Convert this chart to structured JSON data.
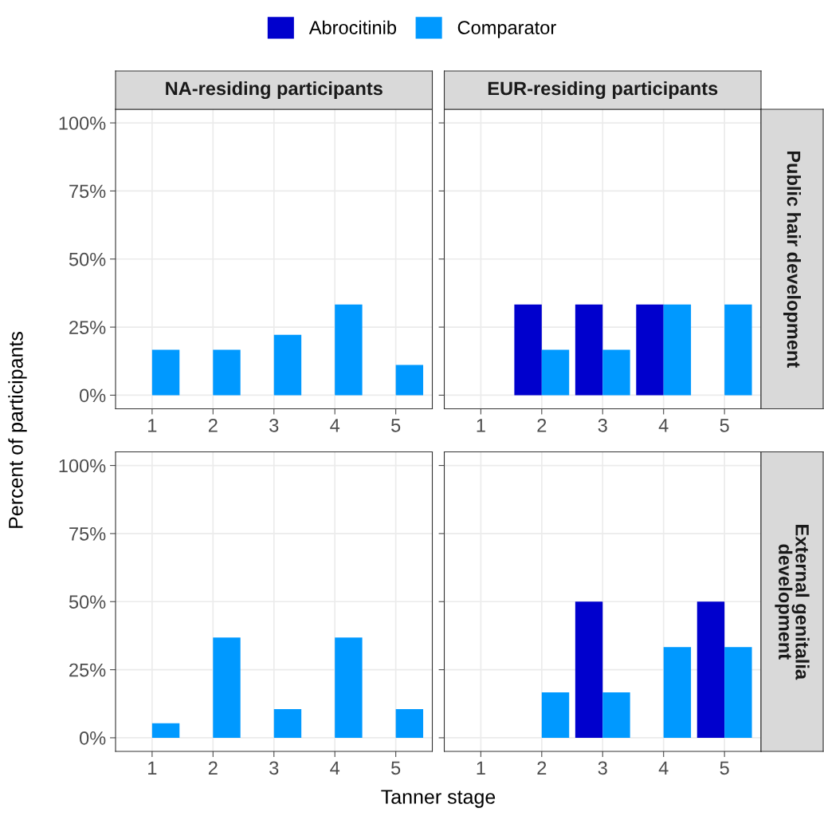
{
  "chart_data": [
    {
      "type": "bar",
      "title": "NA-residing participants",
      "categories": [
        "1",
        "2",
        "3",
        "4",
        "5"
      ],
      "ylabel": "Percent of participants",
      "ylim": [
        -5,
        105
      ],
      "yticks": [
        {
          "value": 0,
          "label": "0%"
        },
        {
          "value": 25,
          "label": "25%"
        },
        {
          "value": 50,
          "label": "50%"
        },
        {
          "value": 75,
          "label": "75%"
        },
        {
          "value": 100,
          "label": "100%"
        }
      ],
      "grid": true,
      "legend": "top",
      "series": [
        {
          "name": "Abrocitinib",
          "color": "#0000cd",
          "values": [
            null,
            null,
            null,
            null,
            null
          ]
        },
        {
          "name": "Comparator",
          "color": "#0099ff",
          "values": [
            16.7,
            16.7,
            22.2,
            33.3,
            11.1
          ]
        }
      ]
    },
    {
      "type": "bar",
      "title": "EUR-residing participants",
      "y2label": "Public hair development",
      "categories": [
        "1",
        "2",
        "3",
        "4",
        "5"
      ],
      "ylim": [
        -5,
        105
      ],
      "yticks": [
        0,
        25,
        50,
        75,
        100
      ],
      "grid": true,
      "tick_labels": "x",
      "series": [
        {
          "color": "#0000cd",
          "values": [
            null,
            33.3,
            33.3,
            33.3,
            null
          ]
        },
        {
          "color": "#0099ff",
          "values": [
            null,
            16.7,
            16.7,
            33.3,
            33.3
          ]
        }
      ]
    },
    {
      "type": "bar",
      "xlabel": "Tanner stage",
      "categories": [
        "1",
        "2",
        "3",
        "4",
        "5"
      ],
      "ylim": [
        -5,
        105
      ],
      "yticks": [
        {
          "value": 0,
          "label": "0%"
        },
        {
          "value": 25,
          "label": "25%"
        },
        {
          "value": 50,
          "label": "50%"
        },
        {
          "value": 75,
          "label": "75%"
        },
        {
          "value": 100,
          "label": "100%"
        }
      ],
      "grid": true,
      "series": [
        {
          "color": "#0000cd",
          "values": [
            null,
            null,
            null,
            null,
            null
          ]
        },
        {
          "color": "#0099ff",
          "values": [
            5.3,
            36.8,
            10.5,
            36.8,
            10.5
          ]
        }
      ]
    },
    {
      "type": "bar",
      "y2label": "External genitalia development",
      "categories": [
        "1",
        "2",
        "3",
        "4",
        "5"
      ],
      "ylim": [
        -5,
        105
      ],
      "yticks": [
        0,
        25,
        50,
        75,
        100
      ],
      "grid": true,
      "tick_labels": "x",
      "series": [
        {
          "color": "#0000cd",
          "values": [
            null,
            null,
            50,
            null,
            50
          ]
        },
        {
          "color": "#0099ff",
          "values": [
            null,
            16.7,
            16.7,
            33.3,
            33.3
          ]
        }
      ]
    }
  ]
}
